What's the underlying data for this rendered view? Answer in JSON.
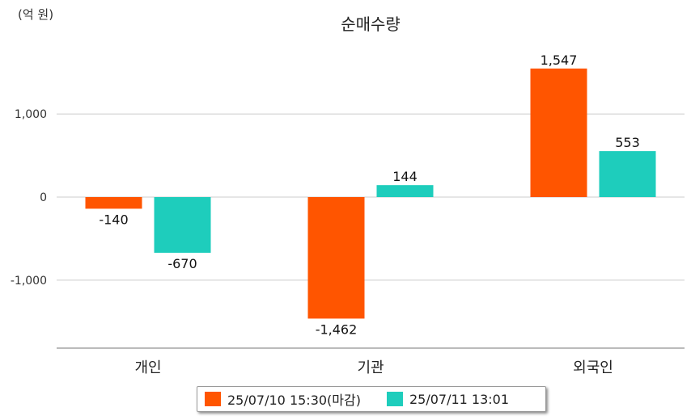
{
  "chart_data": {
    "type": "bar",
    "title": "순매수량",
    "unit_label": "(억 원)",
    "categories": [
      "개인",
      "기관",
      "외국인"
    ],
    "series": [
      {
        "name": "25/07/10 15:30(마감)",
        "color": "#ff5500",
        "values": [
          -140,
          -1462,
          1547
        ],
        "labels": [
          "-140",
          "-1,462",
          "1,547"
        ]
      },
      {
        "name": "25/07/11 13:01",
        "color": "#1ecdbc",
        "values": [
          -670,
          144,
          553
        ],
        "labels": [
          "-670",
          "144",
          "553"
        ]
      }
    ],
    "yticks": [
      1000,
      0,
      -1000
    ],
    "ytick_labels": [
      "1,000",
      "0",
      "-1,000"
    ],
    "ylim": [
      -1820,
      2000
    ],
    "grid": true,
    "legend_position": "bottom"
  }
}
